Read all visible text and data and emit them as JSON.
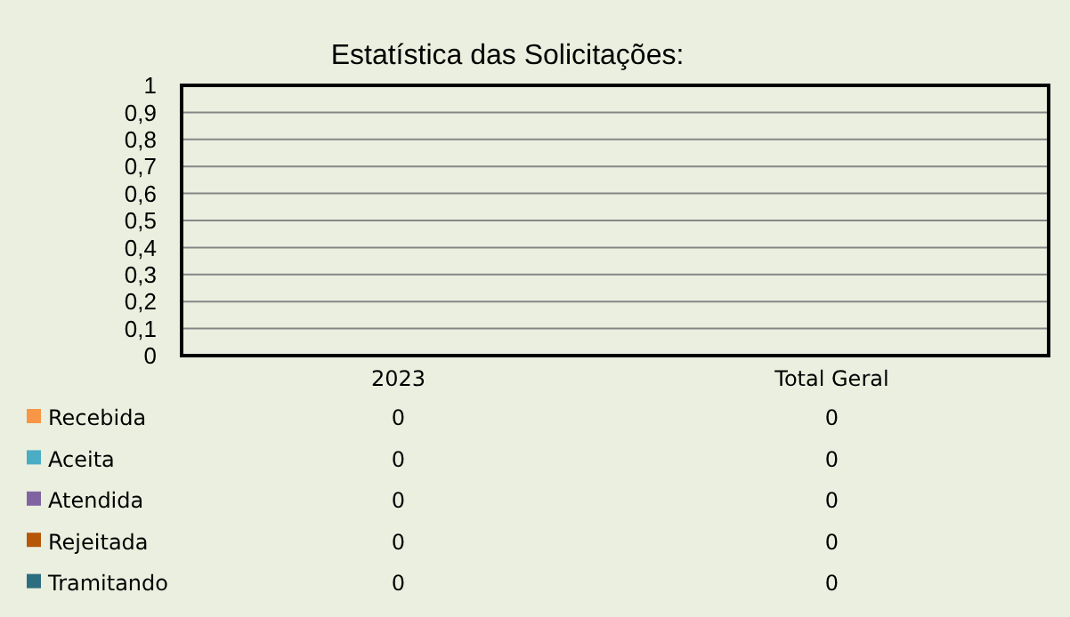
{
  "chart_data": {
    "type": "bar",
    "title": "Estatística das Solicitações:",
    "categories": [
      "2023",
      "Total Geral"
    ],
    "series": [
      {
        "name": "Recebida",
        "color": "#f79646",
        "values": [
          0,
          0
        ]
      },
      {
        "name": "Aceita",
        "color": "#4bacc6",
        "values": [
          0,
          0
        ]
      },
      {
        "name": "Atendida",
        "color": "#8064a2",
        "values": [
          0,
          0
        ]
      },
      {
        "name": "Rejeitada",
        "color": "#b65708",
        "values": [
          0,
          0
        ]
      },
      {
        "name": "Tramitando",
        "color": "#2c6d7f",
        "values": [
          0,
          0
        ]
      }
    ],
    "ylim": [
      0,
      1
    ],
    "yticks": [
      0,
      {
        "value": 0.1,
        "label": "0,1"
      },
      {
        "value": 0.2,
        "label": "0,2"
      },
      {
        "value": 0.3,
        "label": "0,3"
      },
      {
        "value": 0.4,
        "label": "0,4"
      },
      {
        "value": 0.5,
        "label": "0,5"
      },
      {
        "value": 0.6,
        "label": "0,6"
      },
      {
        "value": 0.7,
        "label": "0,7"
      },
      {
        "value": 0.8,
        "label": "0,8"
      },
      {
        "value": 0.9,
        "label": "0,9"
      },
      1
    ],
    "grid": "y",
    "legend": "bottom",
    "data_labels": true
  }
}
